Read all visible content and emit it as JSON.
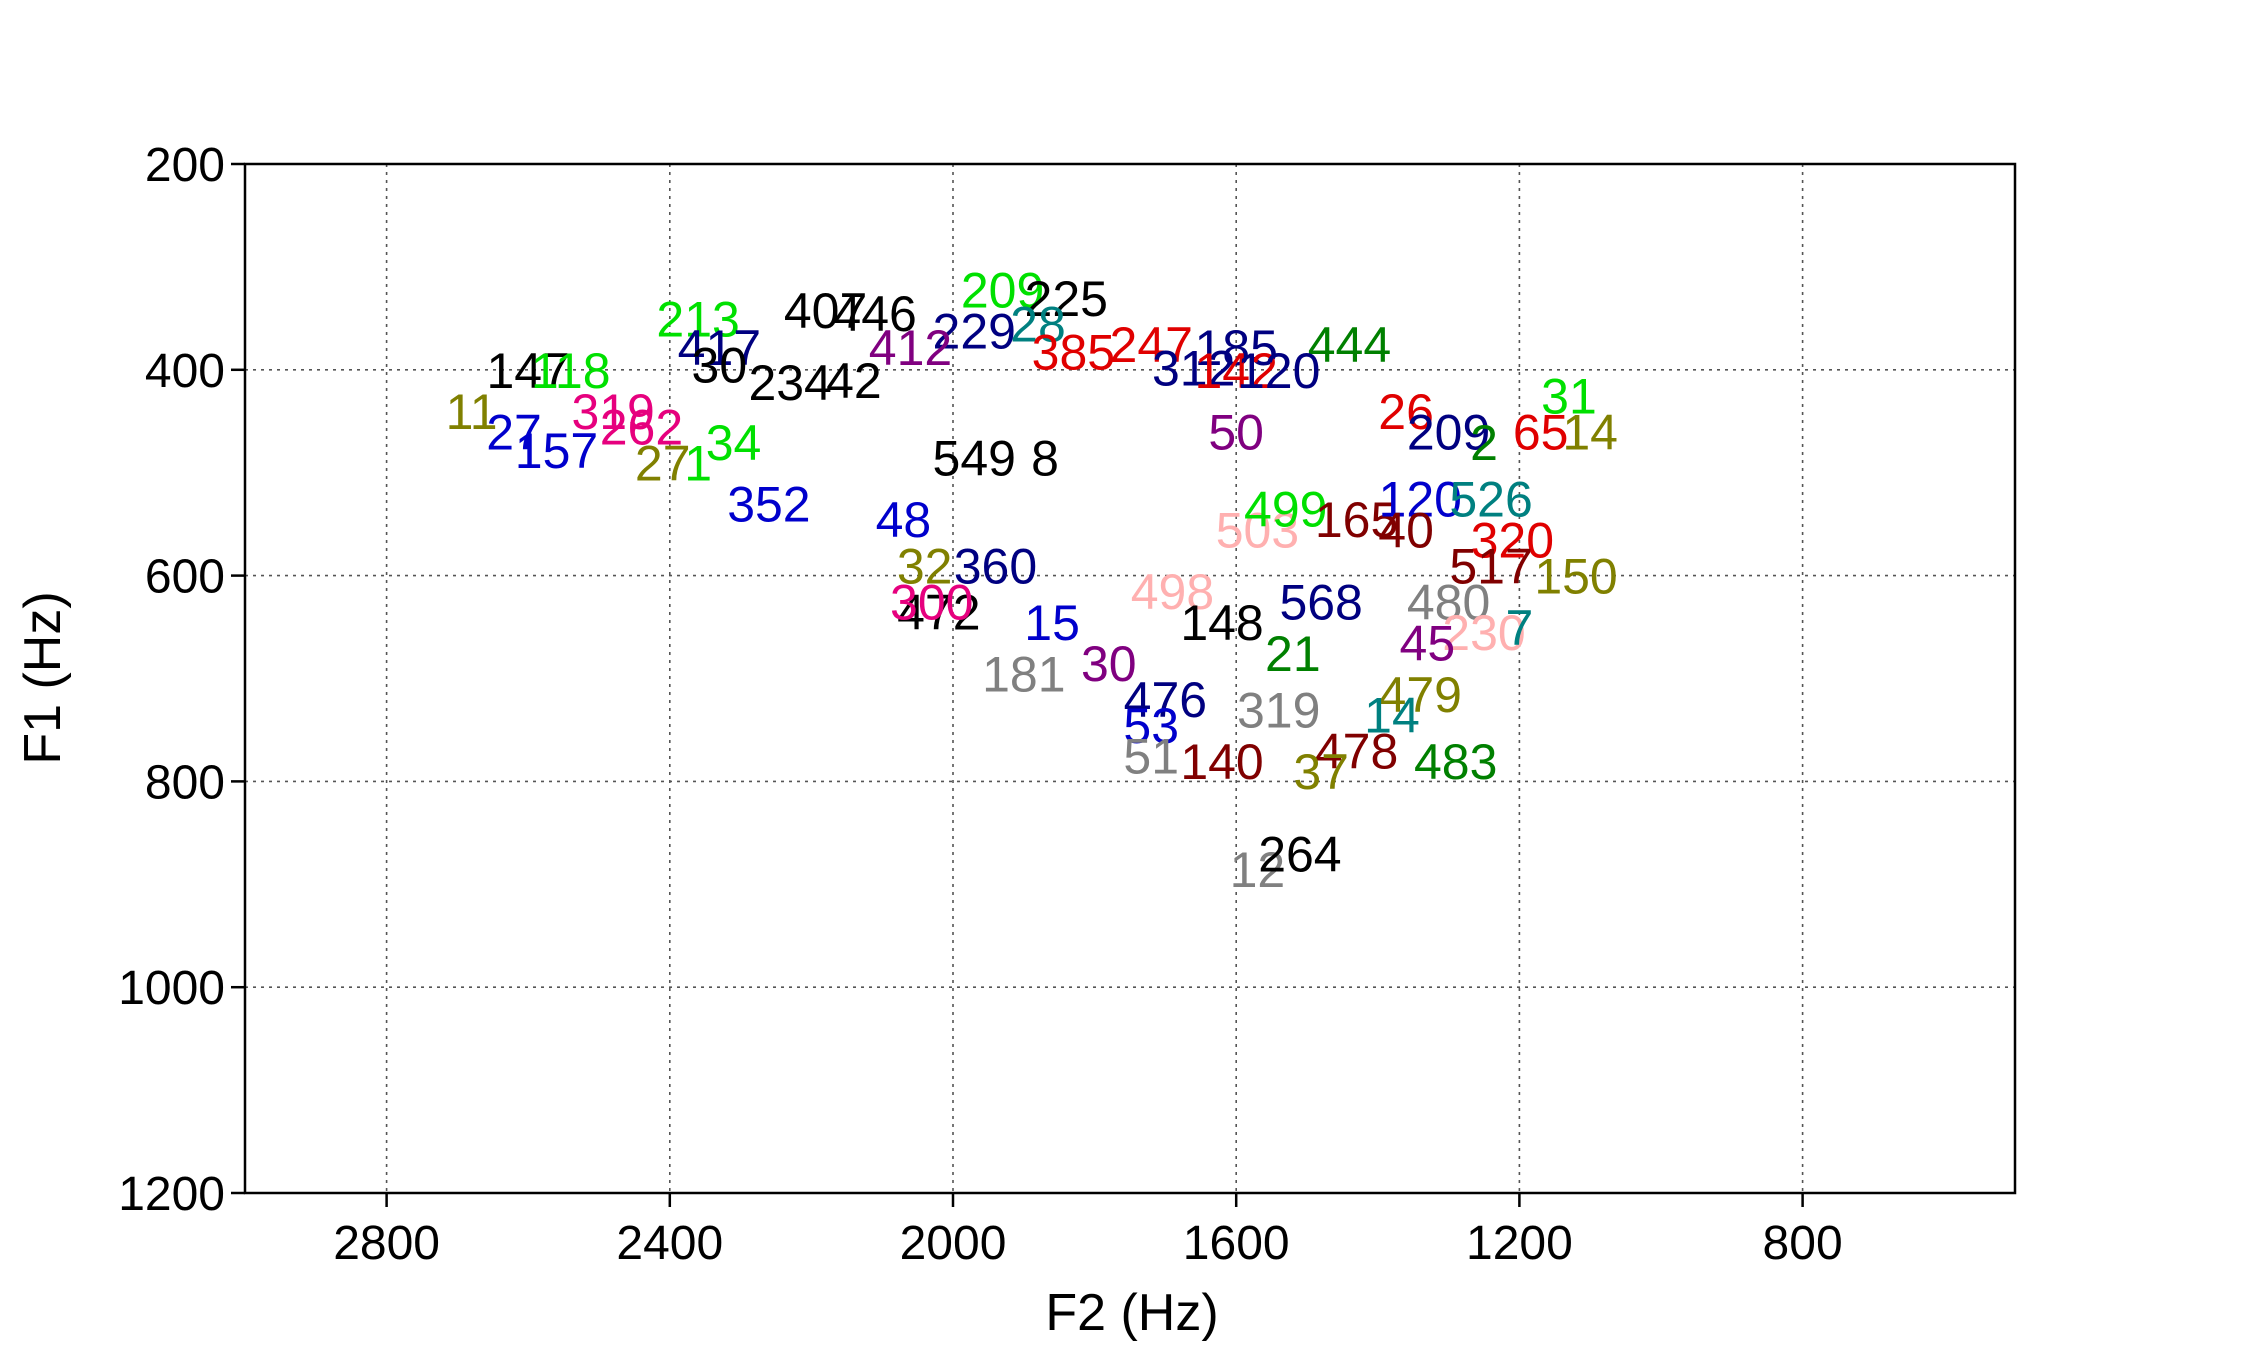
{
  "chart_data": {
    "type": "scatter",
    "xlabel": "F2 (Hz)",
    "ylabel": "F1 (Hz)",
    "xlim": [
      3000,
      500
    ],
    "ylim": [
      1200,
      200
    ],
    "x_reversed": true,
    "y_reversed": true,
    "grid": true,
    "xticks": [
      2800,
      2400,
      2000,
      1600,
      1200,
      800
    ],
    "yticks": [
      200,
      400,
      600,
      800,
      1000,
      1200
    ],
    "colors": {
      "green": "#00e000",
      "black": "#000000",
      "blue": "#0000cc",
      "navy": "#000080",
      "red": "#e00000",
      "maroon": "#800000",
      "olive": "#808000",
      "darkgreen": "#008000",
      "teal": "#008080",
      "purple": "#800080",
      "magenta": "#e6007e",
      "gray": "#808080",
      "pink": "#ffb0b0"
    },
    "points": [
      {
        "label": "209",
        "f2": 1930,
        "f1": 322,
        "color": "green"
      },
      {
        "label": "225",
        "f2": 1840,
        "f1": 330,
        "color": "black"
      },
      {
        "label": "407",
        "f2": 2180,
        "f1": 342,
        "color": "black"
      },
      {
        "label": "446",
        "f2": 2110,
        "f1": 345,
        "color": "black"
      },
      {
        "label": "213",
        "f2": 2360,
        "f1": 350,
        "color": "green"
      },
      {
        "label": "229",
        "f2": 1970,
        "f1": 362,
        "color": "navy"
      },
      {
        "label": "28",
        "f2": 1880,
        "f1": 355,
        "color": "teal"
      },
      {
        "label": "417",
        "f2": 2330,
        "f1": 378,
        "color": "navy"
      },
      {
        "label": "385",
        "f2": 1830,
        "f1": 382,
        "color": "red"
      },
      {
        "label": "247",
        "f2": 1720,
        "f1": 375,
        "color": "red"
      },
      {
        "label": "185",
        "f2": 1600,
        "f1": 378,
        "color": "navy"
      },
      {
        "label": "444",
        "f2": 1440,
        "f1": 375,
        "color": "darkgreen"
      },
      {
        "label": "412",
        "f2": 2060,
        "f1": 378,
        "color": "purple"
      },
      {
        "label": "147",
        "f2": 2600,
        "f1": 400,
        "color": "black"
      },
      {
        "label": "118",
        "f2": 2540,
        "f1": 400,
        "color": "green"
      },
      {
        "label": "30",
        "f2": 2330,
        "f1": 395,
        "color": "black"
      },
      {
        "label": "234",
        "f2": 2230,
        "f1": 412,
        "color": "black"
      },
      {
        "label": "42",
        "f2": 2140,
        "f1": 410,
        "color": "black"
      },
      {
        "label": "312",
        "f2": 1660,
        "f1": 398,
        "color": "navy"
      },
      {
        "label": "142",
        "f2": 1600,
        "f1": 400,
        "color": "red"
      },
      {
        "label": "120",
        "f2": 1540,
        "f1": 400,
        "color": "navy"
      },
      {
        "label": "31",
        "f2": 1130,
        "f1": 425,
        "color": "green"
      },
      {
        "label": "11",
        "f2": 2680,
        "f1": 440,
        "color": "olive"
      },
      {
        "label": "27",
        "f2": 2620,
        "f1": 460,
        "color": "blue"
      },
      {
        "label": "157",
        "f2": 2560,
        "f1": 478,
        "color": "blue"
      },
      {
        "label": "319",
        "f2": 2480,
        "f1": 440,
        "color": "magenta"
      },
      {
        "label": "262",
        "f2": 2440,
        "f1": 455,
        "color": "magenta"
      },
      {
        "label": "27",
        "f2": 2410,
        "f1": 490,
        "color": "olive"
      },
      {
        "label": "1",
        "f2": 2360,
        "f1": 490,
        "color": "green"
      },
      {
        "label": "34",
        "f2": 2310,
        "f1": 470,
        "color": "green"
      },
      {
        "label": "65",
        "f2": 1170,
        "f1": 460,
        "color": "red"
      },
      {
        "label": "14",
        "f2": 1100,
        "f1": 460,
        "color": "olive"
      },
      {
        "label": "26",
        "f2": 1360,
        "f1": 440,
        "color": "red"
      },
      {
        "label": "209",
        "f2": 1300,
        "f1": 460,
        "color": "navy"
      },
      {
        "label": "2",
        "f2": 1250,
        "f1": 470,
        "color": "darkgreen"
      },
      {
        "label": "352",
        "f2": 2260,
        "f1": 530,
        "color": "blue"
      },
      {
        "label": "549",
        "f2": 1970,
        "f1": 485,
        "color": "black"
      },
      {
        "label": "8",
        "f2": 1870,
        "f1": 485,
        "color": "black"
      },
      {
        "label": "50",
        "f2": 1600,
        "f1": 460,
        "color": "purple"
      },
      {
        "label": "48",
        "f2": 2070,
        "f1": 545,
        "color": "blue"
      },
      {
        "label": "503",
        "f2": 1570,
        "f1": 555,
        "color": "pink"
      },
      {
        "label": "499",
        "f2": 1530,
        "f1": 535,
        "color": "green"
      },
      {
        "label": "165",
        "f2": 1430,
        "f1": 545,
        "color": "maroon"
      },
      {
        "label": "120",
        "f2": 1340,
        "f1": 525,
        "color": "blue"
      },
      {
        "label": "526",
        "f2": 1240,
        "f1": 525,
        "color": "teal"
      },
      {
        "label": "40",
        "f2": 1360,
        "f1": 555,
        "color": "maroon"
      },
      {
        "label": "320",
        "f2": 1210,
        "f1": 565,
        "color": "red"
      },
      {
        "label": "32",
        "f2": 2040,
        "f1": 590,
        "color": "olive"
      },
      {
        "label": "360",
        "f2": 1940,
        "f1": 590,
        "color": "navy"
      },
      {
        "label": "150",
        "f2": 1120,
        "f1": 600,
        "color": "olive"
      },
      {
        "label": "517",
        "f2": 1240,
        "f1": 590,
        "color": "maroon"
      },
      {
        "label": "480",
        "f2": 1300,
        "f1": 625,
        "color": "gray"
      },
      {
        "label": "472",
        "f2": 2020,
        "f1": 635,
        "color": "black"
      },
      {
        "label": "300",
        "f2": 2030,
        "f1": 625,
        "color": "magenta"
      },
      {
        "label": "498",
        "f2": 1690,
        "f1": 615,
        "color": "pink"
      },
      {
        "label": "568",
        "f2": 1480,
        "f1": 625,
        "color": "navy"
      },
      {
        "label": "148",
        "f2": 1620,
        "f1": 645,
        "color": "black"
      },
      {
        "label": "15",
        "f2": 1860,
        "f1": 645,
        "color": "blue"
      },
      {
        "label": "230",
        "f2": 1250,
        "f1": 655,
        "color": "pink"
      },
      {
        "label": "7",
        "f2": 1200,
        "f1": 650,
        "color": "teal"
      },
      {
        "label": "45",
        "f2": 1330,
        "f1": 665,
        "color": "purple"
      },
      {
        "label": "181",
        "f2": 1900,
        "f1": 695,
        "color": "gray"
      },
      {
        "label": "30",
        "f2": 1780,
        "f1": 685,
        "color": "purple"
      },
      {
        "label": "21",
        "f2": 1520,
        "f1": 675,
        "color": "darkgreen"
      },
      {
        "label": "476",
        "f2": 1700,
        "f1": 720,
        "color": "navy"
      },
      {
        "label": "53",
        "f2": 1720,
        "f1": 745,
        "color": "blue"
      },
      {
        "label": "319",
        "f2": 1540,
        "f1": 730,
        "color": "gray"
      },
      {
        "label": "479",
        "f2": 1340,
        "f1": 715,
        "color": "olive"
      },
      {
        "label": "14",
        "f2": 1380,
        "f1": 735,
        "color": "teal"
      },
      {
        "label": "51",
        "f2": 1720,
        "f1": 775,
        "color": "gray"
      },
      {
        "label": "140",
        "f2": 1620,
        "f1": 780,
        "color": "maroon"
      },
      {
        "label": "478",
        "f2": 1430,
        "f1": 770,
        "color": "maroon"
      },
      {
        "label": "483",
        "f2": 1290,
        "f1": 780,
        "color": "darkgreen"
      },
      {
        "label": "37",
        "f2": 1480,
        "f1": 790,
        "color": "olive"
      },
      {
        "label": "12",
        "f2": 1570,
        "f1": 885,
        "color": "gray"
      },
      {
        "label": "264",
        "f2": 1510,
        "f1": 870,
        "color": "black"
      }
    ]
  }
}
